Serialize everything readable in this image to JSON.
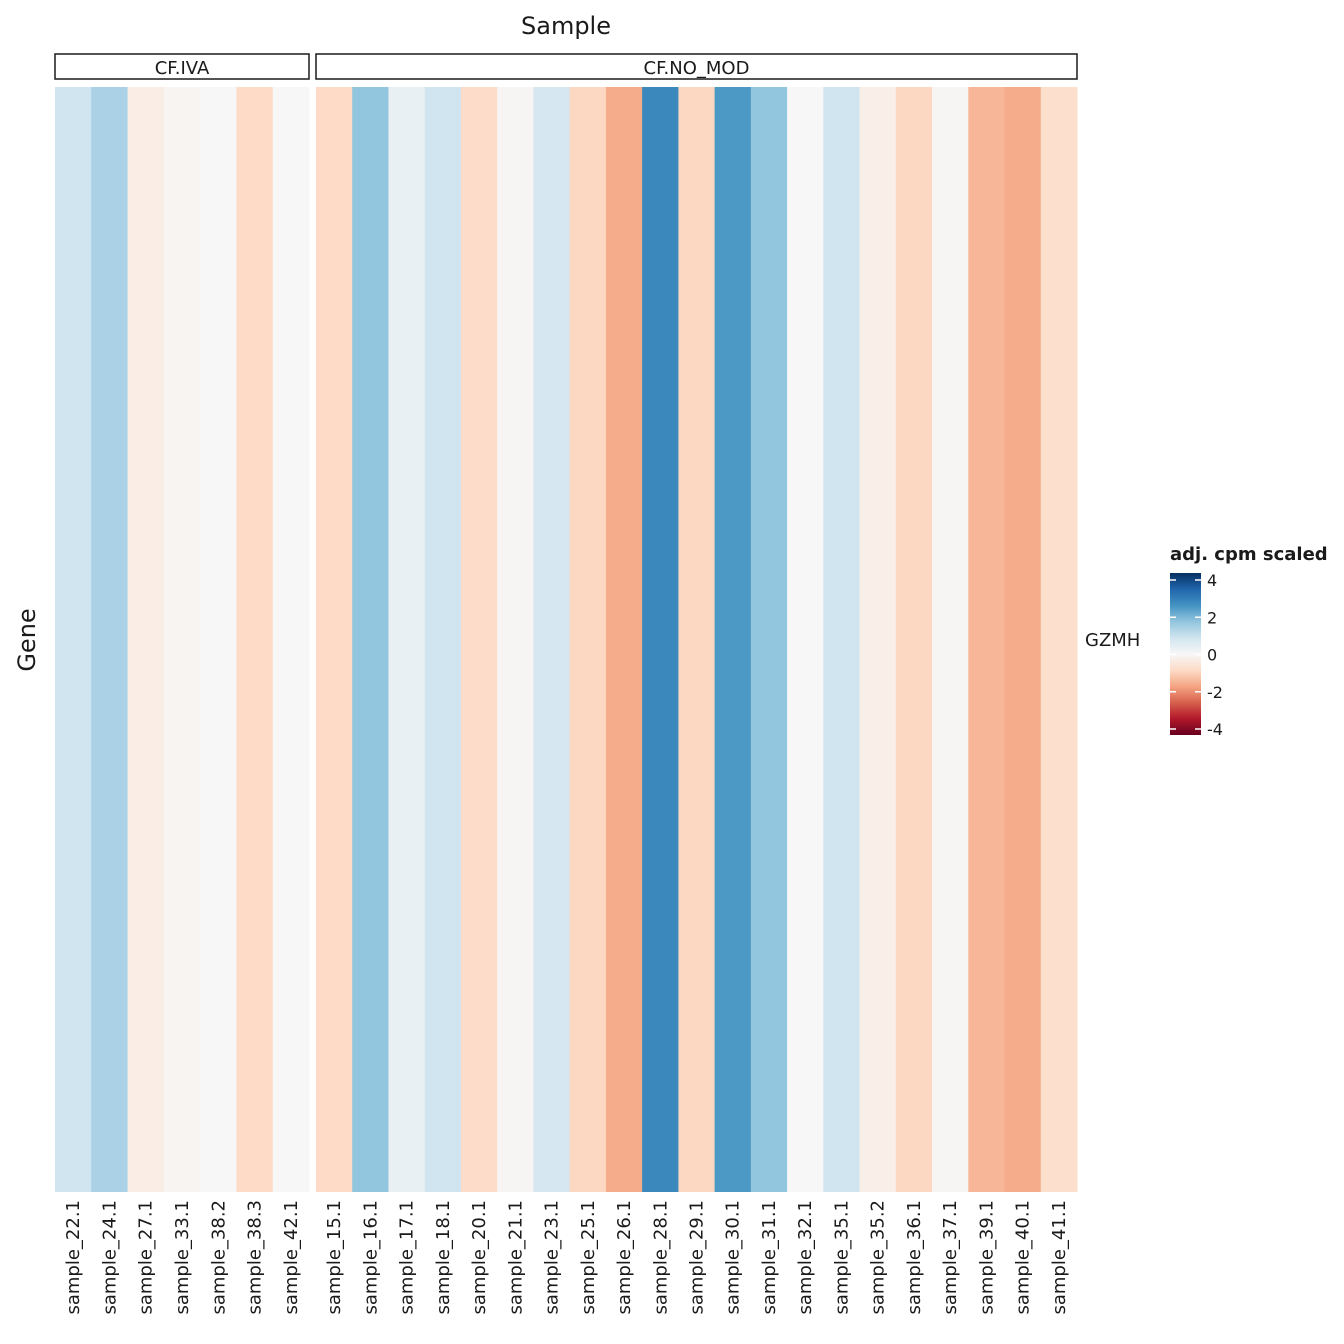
{
  "chart_data": {
    "type": "heatmap",
    "title": "Sample",
    "xlabel": "Sample",
    "ylabel": "Gene",
    "rows": [
      "GZMH"
    ],
    "facets": [
      {
        "label": "CF.IVA",
        "samples": [
          "sample_22.1",
          "sample_24.1",
          "sample_27.1",
          "sample_33.1",
          "sample_38.2",
          "sample_38.3",
          "sample_42.1"
        ],
        "values": [
          0.8,
          1.3,
          -0.3,
          -0.1,
          0.0,
          -0.8,
          0.0
        ]
      },
      {
        "label": "CF.NO_MOD",
        "samples": [
          "sample_15.1",
          "sample_16.1",
          "sample_17.1",
          "sample_18.1",
          "sample_20.1",
          "sample_21.1",
          "sample_23.1",
          "sample_25.1",
          "sample_26.1",
          "sample_28.1",
          "sample_29.1",
          "sample_30.1",
          "sample_31.1",
          "sample_32.1",
          "sample_35.1",
          "sample_35.2",
          "sample_36.1",
          "sample_37.1",
          "sample_39.1",
          "sample_40.1",
          "sample_41.1"
        ],
        "values": [
          -0.8,
          1.6,
          0.3,
          0.8,
          -0.75,
          -0.05,
          0.7,
          -0.85,
          -1.5,
          2.6,
          -0.85,
          2.3,
          1.6,
          0.0,
          0.8,
          -0.25,
          -0.85,
          -0.05,
          -1.35,
          -1.5,
          -0.7
        ]
      }
    ],
    "legend": {
      "title": "adj. cpm scaled",
      "ticks": [
        4,
        2,
        0,
        -2,
        -4
      ],
      "range": [
        -4,
        4
      ],
      "position": "right",
      "palette": "RdBu"
    },
    "colors": [
      "#67001f",
      "#b2182b",
      "#d6604d",
      "#f4a582",
      "#fddbc7",
      "#f7f7f7",
      "#d1e5f0",
      "#92c5de",
      "#4393c3",
      "#2166ac",
      "#053061"
    ]
  }
}
